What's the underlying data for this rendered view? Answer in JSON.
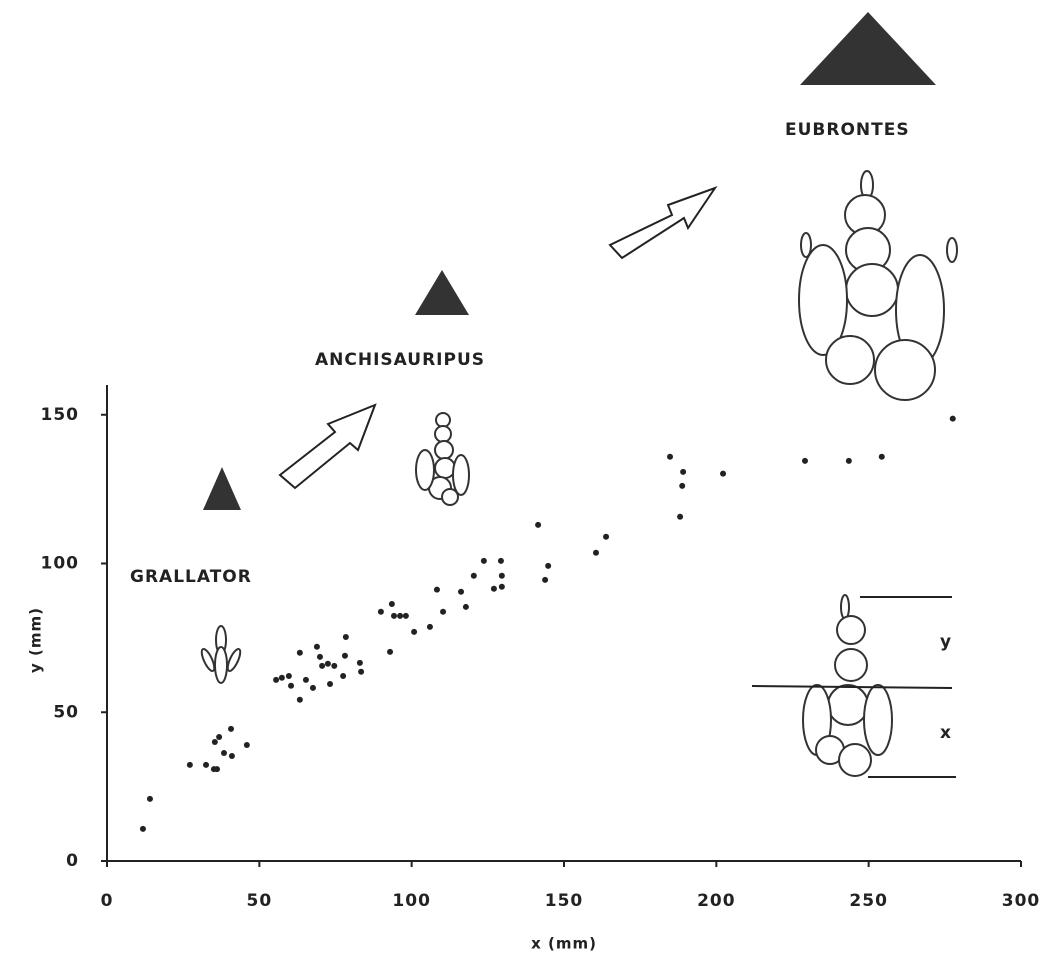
{
  "chart_data": {
    "type": "scatter",
    "x_label": "x (mm)",
    "y_label": "y (mm)",
    "annotations": [
      "GRALLATOR",
      "ANCHISAURIPUS",
      "EUBRONTES",
      "y",
      "x"
    ],
    "xlim": [
      0,
      300
    ],
    "ylim": [
      0,
      160
    ],
    "xticks": [
      0,
      50,
      100,
      150,
      200,
      250,
      300
    ],
    "yticks": [
      0,
      50,
      100,
      150
    ],
    "color": "#222222",
    "x": [
      11.8,
      14.1,
      27.2,
      32.5,
      35.1,
      36.1,
      35.4,
      36.8,
      40.7,
      38.4,
      41,
      45.9,
      55.5,
      57.4,
      59.7,
      60.4,
      63.3,
      63.3,
      65.3,
      67.6,
      68.9,
      69.9,
      70.6,
      72.5,
      73.2,
      74.6,
      77.5,
      78.1,
      78.4,
      83,
      83.4,
      89.9,
      93.5,
      94.2,
      96.2,
      98.1,
      92.9,
      100.8,
      106,
      108.3,
      110.3,
      116.2,
      117.8,
      120.4,
      123.7,
      127,
      129.3,
      129.6,
      129.6,
      141.5,
      143.8,
      144.8,
      160.5,
      163.8,
      184.8,
      189.1,
      188.8,
      188.1,
      202.2,
      229.1,
      243.5,
      254.3,
      277.6
    ],
    "y": [
      10.8,
      20.9,
      32.3,
      32.3,
      30.9,
      30.9,
      40,
      41.7,
      44.4,
      36.3,
      35.3,
      39,
      60.9,
      61.6,
      62.2,
      58.9,
      54.2,
      70,
      60.9,
      58.2,
      72,
      68.6,
      65.6,
      66.3,
      59.5,
      65.6,
      62.2,
      69,
      75.3,
      66.6,
      63.6,
      83.8,
      86.4,
      82.4,
      82.4,
      82.4,
      70.3,
      77,
      78.7,
      91.2,
      83.8,
      90.5,
      85.4,
      95.9,
      100.9,
      91.5,
      100.9,
      92.2,
      95.9,
      113,
      94.5,
      99.2,
      103.6,
      109,
      135.9,
      130.8,
      126.1,
      115.7,
      130.2,
      134.5,
      134.5,
      135.9,
      148.7
    ]
  }
}
